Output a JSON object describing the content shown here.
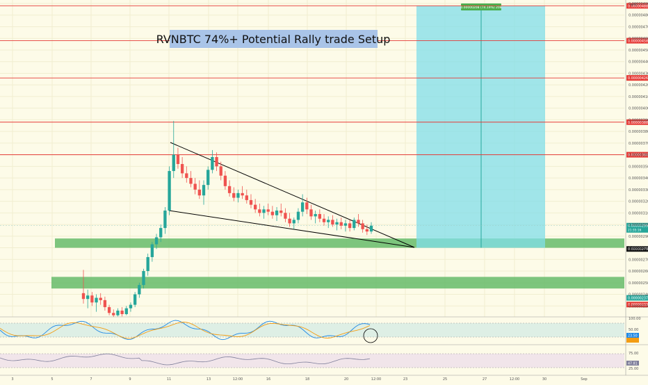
{
  "title": "RVNBTC 74%+ Potential Rally trade Setup",
  "axis": {
    "currency": "BTC",
    "price_ticks": [
      "0.00000490",
      "0.00000480",
      "0.00000470",
      "0.00000460",
      "0.00000450",
      "0.00000440",
      "0.00000430",
      "0.00000420",
      "0.00000410",
      "0.00000400",
      "0.00000390",
      "0.00000380",
      "0.00000370",
      "0.00000360",
      "0.00000350",
      "0.00000340",
      "0.00000330",
      "0.00000320",
      "0.00000310",
      "0.00000300",
      "0.00000290",
      "0.00000280",
      "0.00000270",
      "0.00000260",
      "0.00000250",
      "0.00000240",
      "0.00000230"
    ],
    "time_ticks": [
      "3",
      "5",
      "7",
      "9",
      "11",
      "13",
      "12:00",
      "16",
      "18",
      "20",
      "12:00",
      "23",
      "25",
      "27",
      "12:00",
      "30",
      "Sep"
    ]
  },
  "levels": [
    {
      "price": 4.88e-06,
      "label": "0.00000488"
    },
    {
      "price": 4.58e-06,
      "label": "0.00000458"
    },
    {
      "price": 4.26e-06,
      "label": "0.00000426"
    },
    {
      "price": 3.88e-06,
      "label": "0.00000388"
    },
    {
      "price": 3.6e-06,
      "label": "0.00000360"
    }
  ],
  "current_price": {
    "label": "0.00000299",
    "countdown": "21:35:16"
  },
  "support_label": "0.00000279",
  "lower_labels": {
    "green": "0.00000237",
    "red": "0.00000233"
  },
  "target_box": {
    "top": 4.88e-06,
    "bottom": 2.8e-06,
    "label": "0.00000208 (74.19%) 208"
  },
  "support_zones": [
    {
      "top": 2.88e-06,
      "bottom": 2.8e-06
    },
    {
      "top": 2.55e-06,
      "bottom": 2.45e-06
    }
  ],
  "indicators": {
    "stoch": {
      "ticks": [
        "100.00",
        "50.00",
        "0.00"
      ],
      "value": "23.50"
    },
    "rsi": {
      "ticks": [
        "75.00",
        "25.00"
      ],
      "value": "47.81"
    }
  },
  "colors": {
    "up": "#26a69a",
    "down": "#ef5350",
    "level": "#e53935",
    "zone": "#66bb6a",
    "target": "#80deea"
  },
  "chart_data": {
    "type": "candlestick",
    "title": "RVNBTC 74%+ Potential Rally trade Setup",
    "ylim": [
      2.2e-06,
      4.9e-06
    ],
    "candles": [
      [
        2.41e-06,
        2.61e-06,
        2.32e-06,
        2.36e-06
      ],
      [
        2.36e-06,
        2.44e-06,
        2.28e-06,
        2.39e-06
      ],
      [
        2.39e-06,
        2.42e-06,
        2.3e-06,
        2.33e-06
      ],
      [
        2.33e-06,
        2.4e-06,
        2.25e-06,
        2.37e-06
      ],
      [
        2.37e-06,
        2.41e-06,
        2.31e-06,
        2.35e-06
      ],
      [
        2.35e-06,
        2.38e-06,
        2.26e-06,
        2.29e-06
      ],
      [
        2.29e-06,
        2.31e-06,
        2.22e-06,
        2.24e-06
      ],
      [
        2.24e-06,
        2.27e-06,
        2.2e-06,
        2.22e-06
      ],
      [
        2.22e-06,
        2.28e-06,
        2.21e-06,
        2.26e-06
      ],
      [
        2.26e-06,
        2.29e-06,
        2.21e-06,
        2.23e-06
      ],
      [
        2.23e-06,
        2.3e-06,
        2.22e-06,
        2.28e-06
      ],
      [
        2.28e-06,
        2.33e-06,
        2.25e-06,
        2.31e-06
      ],
      [
        2.31e-06,
        2.42e-06,
        2.29e-06,
        2.4e-06
      ],
      [
        2.4e-06,
        2.5e-06,
        2.37e-06,
        2.48e-06
      ],
      [
        2.48e-06,
        2.62e-06,
        2.45e-06,
        2.6e-06
      ],
      [
        2.6e-06,
        2.75e-06,
        2.56e-06,
        2.72e-06
      ],
      [
        2.72e-06,
        2.85e-06,
        2.68e-06,
        2.83e-06
      ],
      [
        2.83e-06,
        2.92e-06,
        2.79e-06,
        2.89e-06
      ],
      [
        2.89e-06,
        3e-06,
        2.85e-06,
        2.97e-06
      ],
      [
        2.97e-06,
        3.15e-06,
        2.92e-06,
        3.12e-06
      ],
      [
        3.12e-06,
        3.5e-06,
        3.08e-06,
        3.46e-06
      ],
      [
        3.46e-06,
        3.89e-06,
        3.4e-06,
        3.6e-06
      ],
      [
        3.6e-06,
        3.66e-06,
        3.48e-06,
        3.52e-06
      ],
      [
        3.52e-06,
        3.58e-06,
        3.4e-06,
        3.44e-06
      ],
      [
        3.44e-06,
        3.5e-06,
        3.36e-06,
        3.4e-06
      ],
      [
        3.4e-06,
        3.46e-06,
        3.32e-06,
        3.35e-06
      ],
      [
        3.35e-06,
        3.4e-06,
        3.26e-06,
        3.3e-06
      ],
      [
        3.3e-06,
        3.38e-06,
        3.22e-06,
        3.25e-06
      ],
      [
        3.25e-06,
        3.38e-06,
        3.17e-06,
        3.34e-06
      ],
      [
        3.34e-06,
        3.5e-06,
        3.3e-06,
        3.47e-06
      ],
      [
        3.47e-06,
        3.64e-06,
        3.44e-06,
        3.58e-06
      ],
      [
        3.58e-06,
        3.62e-06,
        3.46e-06,
        3.5e-06
      ],
      [
        3.5e-06,
        3.54e-06,
        3.38e-06,
        3.42e-06
      ],
      [
        3.42e-06,
        3.46e-06,
        3.3e-06,
        3.33e-06
      ],
      [
        3.33e-06,
        3.38e-06,
        3.24e-06,
        3.27e-06
      ],
      [
        3.27e-06,
        3.32e-06,
        3.2e-06,
        3.23e-06
      ],
      [
        3.23e-06,
        3.3e-06,
        3.19e-06,
        3.27e-06
      ],
      [
        3.27e-06,
        3.33e-06,
        3.22e-06,
        3.25e-06
      ],
      [
        3.25e-06,
        3.3e-06,
        3.18e-06,
        3.21e-06
      ],
      [
        3.21e-06,
        3.26e-06,
        3.14e-06,
        3.17e-06
      ],
      [
        3.17e-06,
        3.22e-06,
        3.1e-06,
        3.13e-06
      ],
      [
        3.13e-06,
        3.18e-06,
        3.07e-06,
        3.1e-06
      ],
      [
        3.1e-06,
        3.16e-06,
        3.05e-06,
        3.13e-06
      ],
      [
        3.13e-06,
        3.18e-06,
        3.08e-06,
        3.11e-06
      ],
      [
        3.11e-06,
        3.16e-06,
        3.05e-06,
        3.08e-06
      ],
      [
        3.08e-06,
        3.15e-06,
        3.03e-06,
        3.12e-06
      ],
      [
        3.12e-06,
        3.18e-06,
        3.07e-06,
        3.1e-06
      ],
      [
        3.1e-06,
        3.14e-06,
        3.02e-06,
        3.05e-06
      ],
      [
        3.05e-06,
        3.1e-06,
        2.98e-06,
        3.01e-06
      ],
      [
        3.01e-06,
        3.06e-06,
        2.96e-06,
        3.04e-06
      ],
      [
        3.04e-06,
        3.14e-06,
        3.01e-06,
        3.11e-06
      ],
      [
        3.11e-06,
        3.26e-06,
        3.07e-06,
        3.19e-06
      ],
      [
        3.19e-06,
        3.23e-06,
        3.09e-06,
        3.13e-06
      ],
      [
        3.13e-06,
        3.17e-06,
        3.04e-06,
        3.07e-06
      ],
      [
        3.07e-06,
        3.12e-06,
        3.01e-06,
        3.09e-06
      ],
      [
        3.09e-06,
        3.13e-06,
        3.02e-06,
        3.05e-06
      ],
      [
        3.05e-06,
        3.09e-06,
        2.99e-06,
        3.02e-06
      ],
      [
        3.02e-06,
        3.07e-06,
        2.97e-06,
        3.04e-06
      ],
      [
        3.04e-06,
        3.08e-06,
        2.98e-06,
        3e-06
      ],
      [
        3e-06,
        3.05e-06,
        2.95e-06,
        3.02e-06
      ],
      [
        3.02e-06,
        3.06e-06,
        2.96e-06,
        2.99e-06
      ],
      [
        2.99e-06,
        3.04e-06,
        2.94e-06,
        3.01e-06
      ],
      [
        3.01e-06,
        3.04e-06,
        2.94e-06,
        2.97e-06
      ],
      [
        2.97e-06,
        3.06e-06,
        2.95e-06,
        3.04e-06
      ],
      [
        3.04e-06,
        3.09e-06,
        2.98e-06,
        3.01e-06
      ],
      [
        3.01e-06,
        3.04e-06,
        2.93e-06,
        2.96e-06
      ],
      [
        2.96e-06,
        3e-06,
        2.91e-06,
        2.94e-06
      ],
      [
        2.94e-06,
        3.02e-06,
        2.92e-06,
        2.99e-06
      ]
    ]
  }
}
